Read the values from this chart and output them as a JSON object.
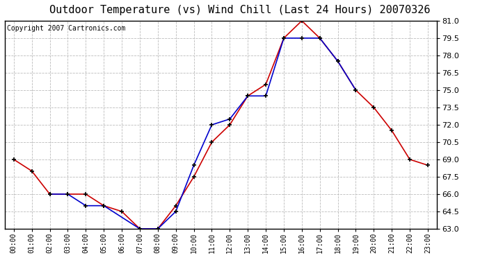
{
  "title": "Outdoor Temperature (vs) Wind Chill (Last 24 Hours) 20070326",
  "copyright_text": "Copyright 2007 Cartronics.com",
  "x_labels": [
    "00:00",
    "01:00",
    "02:00",
    "03:00",
    "04:00",
    "05:00",
    "06:00",
    "07:00",
    "08:00",
    "09:00",
    "10:00",
    "11:00",
    "12:00",
    "13:00",
    "14:00",
    "15:00",
    "16:00",
    "17:00",
    "18:00",
    "19:00",
    "20:00",
    "21:00",
    "22:00",
    "23:00"
  ],
  "temp_red": [
    69.0,
    68.0,
    66.0,
    66.0,
    66.0,
    65.0,
    64.5,
    63.0,
    63.0,
    65.0,
    67.5,
    70.5,
    72.0,
    74.5,
    75.5,
    79.5,
    81.0,
    79.5,
    77.5,
    75.0,
    73.5,
    71.5,
    69.0,
    68.5
  ],
  "wind_chill_blue_x": [
    2,
    3,
    4,
    5,
    7,
    8,
    9,
    10,
    11,
    12,
    13,
    14,
    15,
    16,
    17,
    18,
    19
  ],
  "wind_chill_blue_y": [
    66.0,
    66.0,
    65.0,
    65.0,
    63.0,
    63.0,
    64.5,
    68.5,
    72.0,
    72.5,
    74.5,
    74.5,
    79.5,
    79.5,
    79.5,
    77.5,
    75.0
  ],
  "ylim": [
    63.0,
    81.0
  ],
  "ytick_start": 63.0,
  "ytick_end": 81.0,
  "ytick_step": 1.5,
  "temp_color": "#cc0000",
  "wind_chill_color": "#0000cc",
  "background_color": "#ffffff",
  "plot_bg_color": "#ffffff",
  "grid_color": "#bbbbbb",
  "title_fontsize": 11,
  "copyright_fontsize": 7
}
